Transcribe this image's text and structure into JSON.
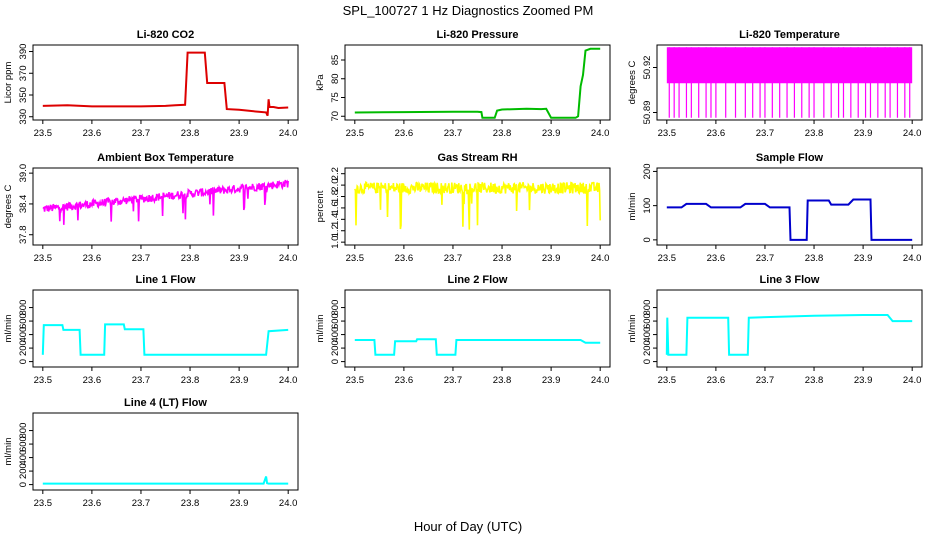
{
  "figure": {
    "title": "SPL_100727  1 Hz Diagnostics Zoomed PM",
    "xlabel": "Hour of Day (UTC)"
  },
  "chart_data": [
    {
      "type": "line",
      "title": "Li-820 CO2",
      "ylabel": "Licor ppm",
      "color": "#dd0000",
      "xlim": [
        23.48,
        24.02
      ],
      "ylim": [
        327,
        396
      ],
      "xticks": [
        23.5,
        23.6,
        23.7,
        23.8,
        23.9,
        24.0
      ],
      "xtick_labels": [
        "23.5",
        "23.6",
        "23.7",
        "23.8",
        "23.9",
        "24.0"
      ],
      "yticks": [
        330,
        350,
        370,
        390
      ],
      "ytick_labels": [
        "330",
        "350",
        "370",
        "390"
      ],
      "x": [
        23.5,
        23.55,
        23.6,
        23.65,
        23.7,
        23.75,
        23.77,
        23.79,
        23.795,
        23.81,
        23.82,
        23.83,
        23.835,
        23.85,
        23.86,
        23.87,
        23.875,
        23.9,
        23.92,
        23.94,
        23.955,
        23.958,
        23.96,
        23.962,
        23.97,
        23.98,
        24.0
      ],
      "y": [
        340,
        340.5,
        339.5,
        339.5,
        339.5,
        340,
        340.5,
        341,
        389,
        389,
        389,
        389,
        361,
        361,
        361,
        361,
        337,
        336.5,
        335.5,
        334.5,
        334,
        331,
        346,
        339,
        339,
        338,
        338.5
      ]
    },
    {
      "type": "line",
      "title": "Li-820 Pressure",
      "ylabel": "kPa",
      "color": "#00bb00",
      "xlim": [
        23.48,
        24.02
      ],
      "ylim": [
        69,
        89
      ],
      "xticks": [
        23.5,
        23.6,
        23.7,
        23.8,
        23.9,
        24.0
      ],
      "xtick_labels": [
        "23.5",
        "23.6",
        "23.7",
        "23.8",
        "23.9",
        "24.0"
      ],
      "yticks": [
        70,
        75,
        80,
        85
      ],
      "ytick_labels": [
        "70",
        "75",
        "80",
        "85"
      ],
      "x": [
        23.5,
        23.6,
        23.7,
        23.74,
        23.75,
        23.758,
        23.76,
        23.77,
        23.78,
        23.785,
        23.79,
        23.8,
        23.85,
        23.88,
        23.89,
        23.9,
        23.93,
        23.94,
        23.95,
        23.955,
        23.96,
        23.965,
        23.97,
        23.98,
        24.0
      ],
      "y": [
        71,
        71.1,
        71.2,
        71.2,
        71.2,
        71.1,
        69.6,
        69.6,
        69.6,
        69.6,
        71.5,
        71.8,
        72,
        71.9,
        72,
        69.6,
        69.6,
        69.6,
        69.6,
        70,
        78,
        81,
        87.5,
        88,
        88
      ]
    },
    {
      "type": "line",
      "title": "Li-820 Temperature",
      "ylabel": "degrees C",
      "color": "#ff00ff",
      "xlim": [
        23.48,
        24.02
      ],
      "ylim": [
        50.885,
        50.935
      ],
      "xticks": [
        23.5,
        23.6,
        23.7,
        23.8,
        23.9,
        24.0
      ],
      "xtick_labels": [
        "23.5",
        "23.6",
        "23.7",
        "23.8",
        "23.9",
        "24.0"
      ],
      "yticks": [
        50.89,
        50.92
      ],
      "ytick_labels": [
        "50.89",
        "50.92"
      ],
      "levels": [
        50.8865,
        50.9335
      ],
      "dips": [
        23.505,
        23.515,
        23.525,
        23.54,
        23.55,
        23.565,
        23.58,
        23.59,
        23.6,
        23.62,
        23.64,
        23.66,
        23.675,
        23.69,
        23.7,
        23.715,
        23.73,
        23.745,
        23.76,
        23.775,
        23.79,
        23.8,
        23.82,
        23.835,
        23.85,
        23.86,
        23.875,
        23.89,
        23.905,
        23.915,
        23.93,
        23.945,
        23.955,
        23.97,
        23.985,
        23.995
      ]
    },
    {
      "type": "line",
      "title": "Ambient Box Temperature",
      "ylabel": "degrees C",
      "color": "#ff00ff",
      "xlim": [
        23.48,
        24.02
      ],
      "ylim": [
        37.6,
        39.1
      ],
      "xticks": [
        23.5,
        23.6,
        23.7,
        23.8,
        23.9,
        24.0
      ],
      "xtick_labels": [
        "23.5",
        "23.6",
        "23.7",
        "23.8",
        "23.9",
        "24.0"
      ],
      "yticks": [
        37.8,
        38.4,
        39.0
      ],
      "ytick_labels": [
        "37.8",
        "38.4",
        "39.0"
      ],
      "x": [
        23.5,
        24.0
      ],
      "y": [
        38.3,
        38.8
      ],
      "noise": 0.08
    },
    {
      "type": "line",
      "title": "Gas Stream RH",
      "ylabel": "percent",
      "color": "#ffff00",
      "xlim": [
        23.48,
        24.02
      ],
      "ylim": [
        0.95,
        2.3
      ],
      "xticks": [
        23.5,
        23.6,
        23.7,
        23.8,
        23.9,
        24.0
      ],
      "xtick_labels": [
        "23.5",
        "23.6",
        "23.7",
        "23.8",
        "23.9",
        "24.0"
      ],
      "yticks": [
        1.0,
        1.2,
        1.4,
        1.6,
        1.8,
        2.0,
        2.2
      ],
      "ytick_labels": [
        "1.0",
        "1.2",
        "1.4",
        "1.6",
        "1.8",
        "2.0",
        "2.2"
      ],
      "x": [
        23.5,
        24.0
      ],
      "y": [
        1.95,
        1.95
      ],
      "noise": 0.1
    },
    {
      "type": "line",
      "title": "Sample Flow",
      "ylabel": "ml/min",
      "color": "#0000cc",
      "xlim": [
        23.48,
        24.02
      ],
      "ylim": [
        -15,
        210
      ],
      "xticks": [
        23.5,
        23.6,
        23.7,
        23.8,
        23.9,
        24.0
      ],
      "xtick_labels": [
        "23.5",
        "23.6",
        "23.7",
        "23.8",
        "23.9",
        "24.0"
      ],
      "yticks": [
        0,
        100,
        200
      ],
      "ytick_labels": [
        "0",
        "100",
        "200"
      ],
      "x": [
        23.5,
        23.53,
        23.54,
        23.58,
        23.59,
        23.65,
        23.66,
        23.7,
        23.71,
        23.75,
        23.752,
        23.785,
        23.787,
        23.83,
        23.835,
        23.87,
        23.88,
        23.915,
        23.917,
        24.0
      ],
      "y": [
        95,
        95,
        105,
        105,
        95,
        95,
        105,
        105,
        95,
        95,
        0,
        0,
        115,
        115,
        103,
        103,
        118,
        118,
        0,
        0
      ]
    },
    {
      "type": "line",
      "title": "Line 1 Flow",
      "ylabel": "ml/min",
      "color": "#00ffff",
      "xlim": [
        23.48,
        24.02
      ],
      "ylim": [
        -80,
        1060
      ],
      "xticks": [
        23.5,
        23.6,
        23.7,
        23.8,
        23.9,
        24.0
      ],
      "xtick_labels": [
        "23.5",
        "23.6",
        "23.7",
        "23.8",
        "23.9",
        "24.0"
      ],
      "yticks": [
        0,
        200,
        400,
        600,
        800
      ],
      "ytick_labels": [
        "0",
        "200",
        "400",
        "600",
        "800"
      ],
      "x": [
        23.5,
        23.502,
        23.54,
        23.542,
        23.575,
        23.577,
        23.625,
        23.627,
        23.665,
        23.667,
        23.705,
        23.707,
        23.955,
        23.96,
        24.0
      ],
      "y": [
        100,
        540,
        540,
        470,
        470,
        100,
        100,
        550,
        550,
        480,
        480,
        100,
        100,
        450,
        470
      ]
    },
    {
      "type": "line",
      "title": "Line 2 Flow",
      "ylabel": "ml/min",
      "color": "#00ffff",
      "xlim": [
        23.48,
        24.02
      ],
      "ylim": [
        -80,
        1060
      ],
      "xticks": [
        23.5,
        23.6,
        23.7,
        23.8,
        23.9,
        24.0
      ],
      "xtick_labels": [
        "23.5",
        "23.6",
        "23.7",
        "23.8",
        "23.9",
        "24.0"
      ],
      "yticks": [
        0,
        200,
        400,
        600,
        800
      ],
      "ytick_labels": [
        "0",
        "200",
        "400",
        "600",
        "800"
      ],
      "x": [
        23.5,
        23.54,
        23.542,
        23.58,
        23.582,
        23.625,
        23.627,
        23.665,
        23.667,
        23.705,
        23.707,
        23.96,
        23.97,
        24.0
      ],
      "y": [
        320,
        320,
        100,
        100,
        300,
        300,
        330,
        330,
        100,
        100,
        320,
        320,
        280,
        280
      ]
    },
    {
      "type": "line",
      "title": "Line 3 Flow",
      "ylabel": "ml/min",
      "color": "#00ffff",
      "xlim": [
        23.48,
        24.02
      ],
      "ylim": [
        -80,
        1060
      ],
      "xticks": [
        23.5,
        23.6,
        23.7,
        23.8,
        23.9,
        24.0
      ],
      "xtick_labels": [
        "23.5",
        "23.6",
        "23.7",
        "23.8",
        "23.9",
        "24.0"
      ],
      "yticks": [
        0,
        200,
        400,
        600,
        800
      ],
      "ytick_labels": [
        "0",
        "200",
        "400",
        "600",
        "800"
      ],
      "x": [
        23.5,
        23.501,
        23.503,
        23.54,
        23.542,
        23.625,
        23.627,
        23.665,
        23.667,
        23.8,
        23.9,
        23.95,
        23.96,
        24.0
      ],
      "y": [
        100,
        650,
        100,
        100,
        650,
        650,
        100,
        100,
        650,
        680,
        690,
        690,
        600,
        600
      ]
    },
    {
      "type": "line",
      "title": "Line 4 (LT) Flow",
      "ylabel": "ml/min",
      "color": "#00ffff",
      "xlim": [
        23.48,
        24.02
      ],
      "ylim": [
        -80,
        1060
      ],
      "xticks": [
        23.5,
        23.6,
        23.7,
        23.8,
        23.9,
        24.0
      ],
      "xtick_labels": [
        "23.5",
        "23.6",
        "23.7",
        "23.8",
        "23.9",
        "24.0"
      ],
      "yticks": [
        0,
        200,
        400,
        600,
        800
      ],
      "ytick_labels": [
        "0",
        "200",
        "400",
        "600",
        "800"
      ],
      "x": [
        23.5,
        23.7,
        23.95,
        23.955,
        23.957,
        23.96,
        24.0
      ],
      "y": [
        15,
        15,
        15,
        120,
        20,
        15,
        15
      ]
    }
  ]
}
